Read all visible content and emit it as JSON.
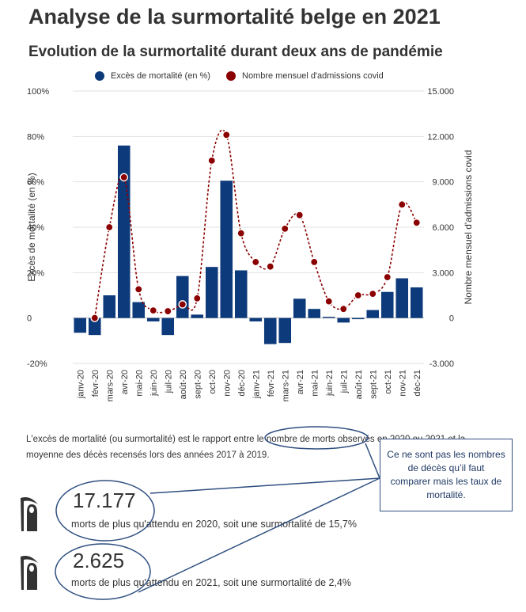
{
  "header": {
    "title": "Analyse de la surmortalité belge en 2021",
    "subtitle": "Evolution de la surmortalité durant deux ans de pandémie"
  },
  "chart_data": {
    "type": "bar",
    "categories": [
      "janv-20",
      "févr-20",
      "mars-20",
      "avr-20",
      "mai-20",
      "juin-20",
      "juil-20",
      "août-20",
      "sept-20",
      "oct-20",
      "nov-20",
      "déc-20",
      "janv-21",
      "févr-21",
      "mars-21",
      "avr-21",
      "mai-21",
      "juin-21",
      "juil-21",
      "août-21",
      "sept-21",
      "oct-21",
      "nov-21",
      "déc-21"
    ],
    "series": [
      {
        "name": "Excès de mortalité (en %)",
        "type": "bar",
        "axis": "left",
        "values": [
          -6.5,
          -7.5,
          10,
          76,
          7,
          -1.5,
          -7.5,
          18.5,
          1.5,
          22.5,
          60.5,
          21,
          -1.5,
          -11.5,
          -11,
          8.5,
          4,
          0.5,
          -2,
          -0.5,
          3.5,
          11.5,
          17.5,
          13.5
        ]
      },
      {
        "name": "Nombre mensuel d'admissions covid",
        "type": "line",
        "axis": "right",
        "values": [
          null,
          0,
          6000,
          9300,
          1900,
          500,
          450,
          900,
          1300,
          10400,
          12100,
          5600,
          3700,
          3400,
          5900,
          6800,
          3700,
          1100,
          600,
          1500,
          1600,
          2700,
          7500,
          6300
        ]
      }
    ],
    "y_left": {
      "label": "Excès de mortalité (en %)",
      "range": [
        -20,
        100
      ],
      "ticks": [
        "-20%",
        "0",
        "20%",
        "40%",
        "60%",
        "80%",
        "100%"
      ]
    },
    "y_right": {
      "label": "Nombre mensuel d'admissions covid",
      "range": [
        -3000,
        15000
      ],
      "ticks": [
        "-3.000",
        "0",
        "3.000",
        "6.000",
        "9.000",
        "12.000",
        "15.000"
      ]
    },
    "legend_position": "top",
    "colors": {
      "bar": "#0d3a7a",
      "line": "#8b0000"
    }
  },
  "description": "L'excès de mortalité (ou surmortalité) est le rapport entre le nombre de morts observés en 2020 ou 2021 et la moyenne des décès recensés lors des années 2017 à 2019.",
  "stats": [
    {
      "number": "17.177",
      "text": "morts de plus qu'attendu en 2020, soit une surmortalité de 15,7%"
    },
    {
      "number": "2.625",
      "text": "morts de plus qu'attendu en 2021, soit une surmortalité de 2,4%"
    }
  ],
  "callout": {
    "text": "Ce ne sont pas les nombres de décès qu’il faut comparer mais les taux de mortalité."
  },
  "icons": {
    "stat_icon": "grim-reaper-icon"
  }
}
